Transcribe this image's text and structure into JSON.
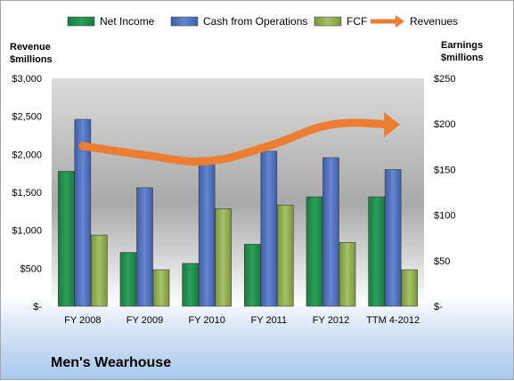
{
  "chart_data": {
    "type": "bar",
    "categories": [
      "FY 2008",
      "FY 2009",
      "FY 2010",
      "FY 2011",
      "FY 2012",
      "TTM 4-2012"
    ],
    "series": [
      {
        "name": "Net Income",
        "axis": "right",
        "color": "#1f8a4a",
        "values": [
          148,
          59,
          47,
          68,
          120,
          120
        ]
      },
      {
        "name": "Cash from Operations",
        "axis": "right",
        "color": "#4f6fbf",
        "values": [
          205,
          130,
          163,
          170,
          163,
          150
        ]
      },
      {
        "name": "FCF",
        "axis": "right",
        "color": "#8fac4e",
        "values": [
          78,
          40,
          107,
          111,
          70,
          40
        ]
      },
      {
        "name": "Revenues",
        "axis": "left",
        "type": "line",
        "color": "#ed7d31",
        "values": [
          2110,
          1990,
          1910,
          2110,
          2390,
          2390
        ]
      }
    ],
    "left_axis": {
      "title_lines": [
        "Revenue",
        "$millions"
      ],
      "ticks": [
        "$3,000",
        "$2,500",
        "$2,000",
        "$1,500",
        "$1,000",
        "$500",
        "$-"
      ],
      "ylim": [
        0,
        3000
      ]
    },
    "right_axis": {
      "title_lines": [
        "Earnings",
        "$millions"
      ],
      "ticks": [
        "$250",
        "$200",
        "$150",
        "$100",
        "$50",
        "$-"
      ],
      "ylim": [
        0,
        250
      ]
    },
    "legend_position": "top",
    "gridlines": false
  },
  "company_name": "Men's Wearhouse"
}
